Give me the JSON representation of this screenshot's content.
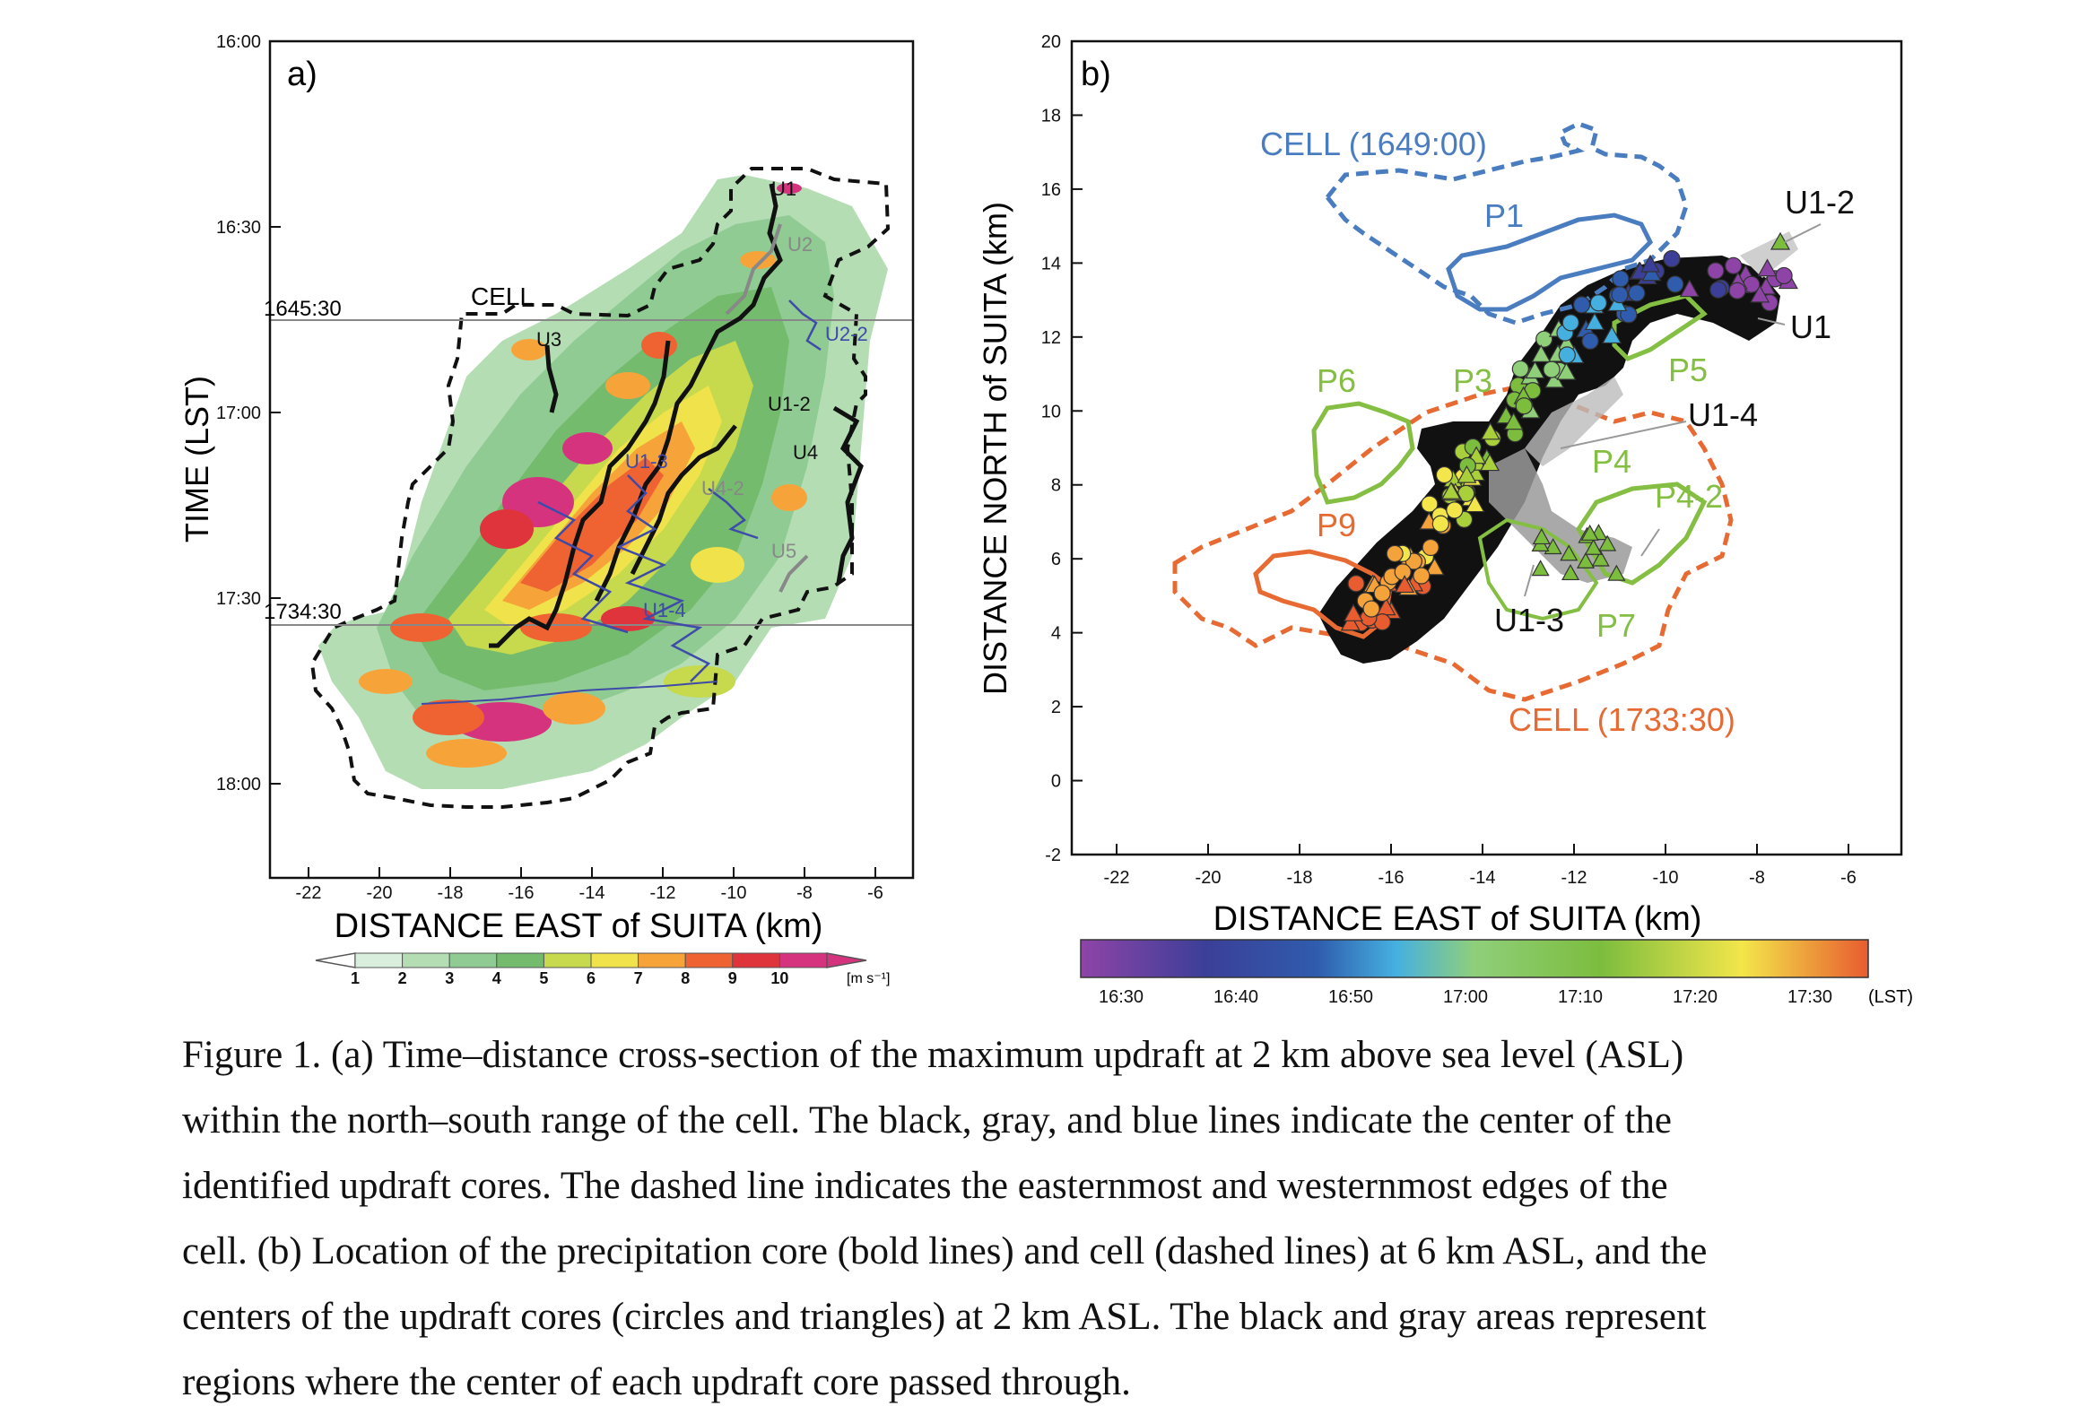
{
  "panel_a": {
    "letter": "a)",
    "ylabel": "TIME (LST)",
    "xlabel": "DISTANCE EAST of SUITA (km)",
    "yticks": [
      "16:00",
      "16:30",
      "17:00",
      "17:30",
      "18:00"
    ],
    "xticks": [
      "-22",
      "-20",
      "-18",
      "-16",
      "-14",
      "-12",
      "-10",
      "-8",
      "-6"
    ],
    "ref_lines": [
      "1645:30",
      "1734:30"
    ],
    "labels": {
      "cell": "CELL",
      "u1": "U1",
      "u2": "U2",
      "u2_2": "U2-2",
      "u3": "U3",
      "u1_2": "U1-2",
      "u4": "U4",
      "u1_3": "U1-3",
      "u4_2": "U4-2",
      "u5": "U5",
      "u1_4": "U1-4"
    },
    "colorbar": {
      "ticks": [
        "1",
        "2",
        "3",
        "4",
        "5",
        "6",
        "7",
        "8",
        "9",
        "10"
      ],
      "unit": "[m s⁻¹]",
      "colors": [
        "#d9eedc",
        "#b4ddb4",
        "#8fcb92",
        "#74bb6e",
        "#c7d94c",
        "#f0e24a",
        "#f6a43a",
        "#ef6232",
        "#e0343c",
        "#d6337f"
      ]
    }
  },
  "panel_b": {
    "letter": "b)",
    "ylabel": "DISTANCE NORTH of SUITA (km)",
    "xlabel": "DISTANCE EAST of SUITA (km)",
    "yticks": [
      "20",
      "18",
      "16",
      "14",
      "12",
      "10",
      "8",
      "6",
      "4",
      "2",
      "0",
      "-2"
    ],
    "xticks": [
      "-22",
      "-20",
      "-18",
      "-16",
      "-14",
      "-12",
      "-10",
      "-8",
      "-6"
    ],
    "labels": {
      "cell_early": "CELL (1649:00)",
      "cell_late": "CELL (1733:30)",
      "p1": "P1",
      "p3": "P3",
      "p4": "P4",
      "p4_2": "P4-2",
      "p5": "P5",
      "p6": "P6",
      "p7": "P7",
      "p9": "P9",
      "u1": "U1",
      "u1_2": "U1-2",
      "u1_3": "U1-3",
      "u1_4": "U1-4"
    },
    "colorbar": {
      "ticks": [
        "16:30",
        "16:40",
        "16:50",
        "17:00",
        "17:10",
        "17:20",
        "17:30"
      ],
      "unit": "(LST)",
      "colors": [
        "#8e44a7",
        "#3b3f98",
        "#2f5cad",
        "#45b0e0",
        "#8fcf7a",
        "#7cbd3e",
        "#f3e64a",
        "#e85c2f"
      ]
    },
    "colors": {
      "early_cell": "#4a7cc0",
      "late_cell": "#e76a33",
      "mid_green": "#84be42"
    }
  },
  "caption": [
    "Figure 1. (a) Time–distance cross-section of the maximum updraft at 2 km above sea level (ASL)",
    "within the north–south range of the cell. The black, gray, and blue lines indicate the center of the",
    "identified updraft cores. The dashed line indicates the easternmost and westernmost edges of the",
    "cell. (b) Location of the precipitation core (bold lines) and cell (dashed lines) at 6 km ASL, and the",
    "centers of the updraft cores (circles and triangles) at 2 km ASL. The black and gray areas represent",
    "regions where the center of each updraft core passed through."
  ]
}
